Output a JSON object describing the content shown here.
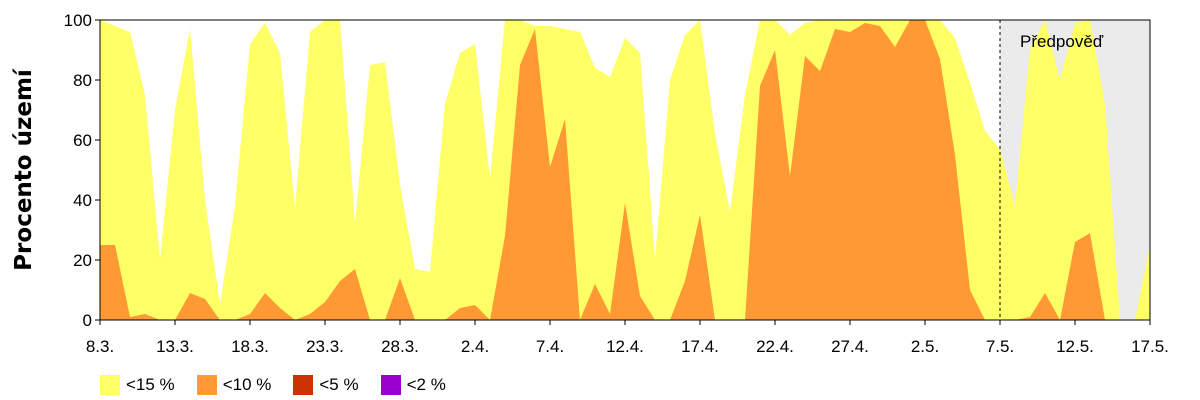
{
  "chart_data": {
    "type": "area",
    "ylabel": "Procento území",
    "ylim": [
      0,
      100
    ],
    "yticks": [
      "0",
      "20",
      "40",
      "60",
      "80",
      "100"
    ],
    "xlim": [
      0,
      70
    ],
    "xticks": [
      {
        "x": 0,
        "label": "8.3."
      },
      {
        "x": 5,
        "label": "13.3."
      },
      {
        "x": 10,
        "label": "18.3."
      },
      {
        "x": 15,
        "label": "23.3."
      },
      {
        "x": 20,
        "label": "28.3."
      },
      {
        "x": 25,
        "label": "2.4."
      },
      {
        "x": 30,
        "label": "7.4."
      },
      {
        "x": 35,
        "label": "12.4."
      },
      {
        "x": 40,
        "label": "17.4."
      },
      {
        "x": 45,
        "label": "22.4."
      },
      {
        "x": 50,
        "label": "27.4."
      },
      {
        "x": 55,
        "label": "2.5."
      },
      {
        "x": 60,
        "label": "7.5."
      },
      {
        "x": 65,
        "label": "12.5."
      },
      {
        "x": 70,
        "label": "17.5."
      }
    ],
    "grid": false,
    "legend_placement": "bottom-left",
    "forecast": {
      "start_x": 60,
      "label": "Předpověď",
      "shade_color": "#ebebeb"
    },
    "series": [
      {
        "name": "<15 %",
        "color": "#ffff66",
        "values": [
          100,
          98,
          96,
          75,
          20,
          70,
          97,
          40,
          5,
          38,
          92,
          99,
          89,
          37,
          96,
          100,
          100,
          32,
          85,
          86,
          45,
          17,
          16,
          72,
          89,
          92,
          47,
          100,
          100,
          98,
          98,
          97,
          96,
          84,
          81,
          94,
          89,
          20,
          80,
          95,
          100,
          62,
          36,
          75,
          100,
          100,
          95,
          99,
          100,
          100,
          100,
          100,
          100,
          100,
          100,
          100,
          100,
          94,
          79,
          63,
          57,
          38,
          90,
          100,
          80,
          99,
          100,
          72,
          0,
          0,
          25
        ]
      },
      {
        "name": "<10 %",
        "color": "#ff9933",
        "values": [
          25,
          25,
          1,
          2,
          0,
          0,
          9,
          7,
          0,
          0,
          2,
          9,
          4,
          0,
          2,
          6,
          13,
          17,
          0,
          0,
          14,
          0,
          0,
          0,
          4,
          5,
          0,
          28,
          85,
          97,
          51,
          67,
          0,
          12,
          2,
          39,
          8,
          0,
          0,
          13,
          35,
          0,
          0,
          0,
          78,
          90,
          48,
          88,
          83,
          97,
          96,
          99,
          98,
          91,
          100,
          100,
          87,
          55,
          10,
          0,
          0,
          0,
          1,
          9,
          0,
          26,
          29,
          0,
          0,
          0,
          0
        ]
      },
      {
        "name": "<5 %",
        "color": "#cc3300",
        "values": []
      },
      {
        "name": "<2 %",
        "color": "#9900cc",
        "values": []
      }
    ]
  }
}
